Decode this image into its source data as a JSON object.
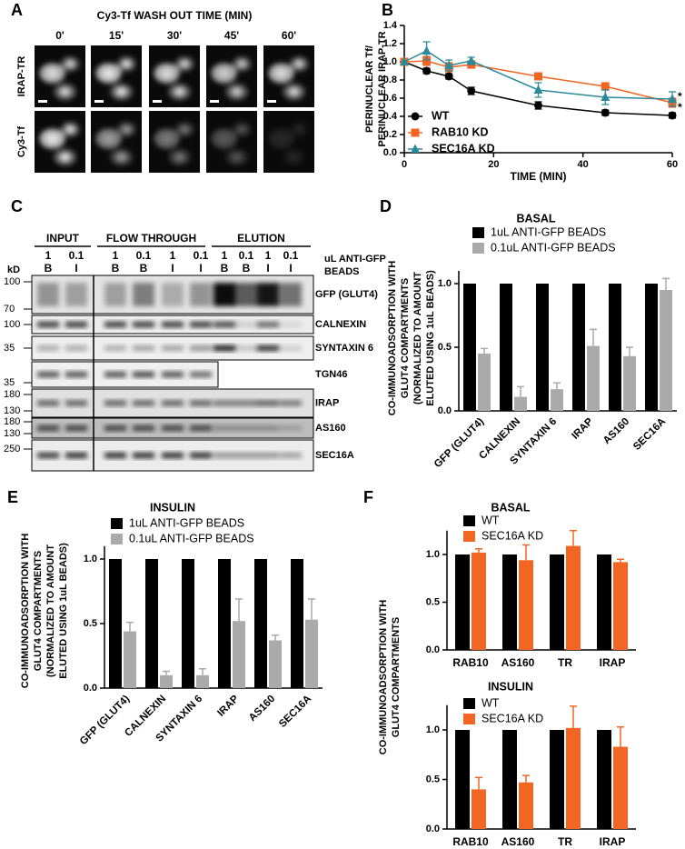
{
  "panel_labels": [
    "A",
    "B",
    "C",
    "D",
    "E",
    "F"
  ],
  "panel_a": {
    "title": "Cy3-Tf WASH OUT TIME (MIN)",
    "times": [
      "0'",
      "15'",
      "30'",
      "45'",
      "60'"
    ],
    "rows": [
      "IRAP-TR",
      "Cy3-Tf"
    ]
  },
  "panel_c": {
    "groups": [
      "INPUT",
      "FLOW THROUGH",
      "ELUTION"
    ],
    "lanes": [
      [
        "1",
        "B"
      ],
      [
        "0.1",
        "I"
      ],
      [
        "1",
        "B"
      ],
      [
        "0.1",
        "B"
      ],
      [
        "1",
        "I"
      ],
      [
        "0.1",
        "I"
      ],
      [
        "1",
        "B"
      ],
      [
        "0.1",
        "B"
      ],
      [
        "1",
        "I"
      ],
      [
        "0.1",
        "I"
      ]
    ],
    "lane_key": [
      "uL ANTI-GFP",
      "BEADS"
    ],
    "kd_label": "kD",
    "blots": [
      {
        "label": "GFP (GLUT4)",
        "markers": [
          "100",
          "70"
        ]
      },
      {
        "label": "CALNEXIN",
        "markers": [
          "100"
        ]
      },
      {
        "label": "SYNTAXIN 6",
        "markers": [
          "35"
        ]
      },
      {
        "label": "TGN46",
        "markers": [
          "35"
        ]
      },
      {
        "label": "IRAP",
        "markers": [
          "180",
          "130"
        ]
      },
      {
        "label": "AS160",
        "markers": [
          "180",
          "130"
        ]
      },
      {
        "label": "SEC16A",
        "markers": [
          "250"
        ]
      }
    ]
  },
  "chart_data": [
    {
      "type": "line",
      "x_label": "TIME (MIN)",
      "y_label": [
        "PERINUCLEAR Tf/",
        "PERINUCLEAR IRAP-TR"
      ],
      "x": [
        0,
        5,
        10,
        15,
        30,
        45,
        60
      ],
      "series": [
        {
          "name": "WT",
          "color": "#000000",
          "marker": "circle",
          "values": [
            1.0,
            0.9,
            0.84,
            0.68,
            0.52,
            0.44,
            0.41
          ],
          "errors": [
            null,
            0.03,
            0.03,
            0.04,
            0.04,
            0.03,
            0.03
          ]
        },
        {
          "name": "RAB10 KD",
          "color": "#f26522",
          "marker": "square",
          "values": [
            1.0,
            1.01,
            0.94,
            0.97,
            0.84,
            0.73,
            0.55
          ],
          "errors": [
            null,
            0.05,
            0.05,
            0.04,
            0.03,
            0.04,
            0.05
          ]
        },
        {
          "name": "SEC16A KD",
          "color": "#2a8a9a",
          "marker": "triangle",
          "values": [
            1.0,
            1.12,
            0.96,
            1.01,
            0.69,
            0.61,
            0.59
          ],
          "errors": [
            null,
            0.1,
            0.06,
            0.04,
            0.08,
            0.08,
            0.08
          ]
        }
      ],
      "annotations": [
        "*",
        "*"
      ],
      "xlim": [
        0,
        60
      ],
      "xticks": [
        0,
        20,
        40,
        60
      ],
      "ylim": [
        0,
        1.4
      ],
      "yticks": [
        {
          "value": 0,
          "label": "0.0"
        },
        0.2,
        0.4,
        0.6,
        0.8,
        {
          "value": 1,
          "label": "1.0"
        },
        1.2,
        1.4
      ]
    },
    {
      "type": "bar",
      "title": "BASAL",
      "y_label": [
        "CO-IMMUNOADSORPTION WITH",
        "GLUT4 COMPARTMENTS",
        "(NORMALIZED TO AMOUNT",
        "ELUTED USING 1uL BEADS)"
      ],
      "categories": [
        "GFP (GLUT4)",
        "CALNEXIN",
        "SYNTAXIN 6",
        "IRAP",
        "AS160",
        "SEC16A"
      ],
      "series": [
        {
          "name": "1uL ANTI-GFP BEADS",
          "color": "#000000",
          "values": [
            1,
            1,
            1,
            1,
            1,
            1
          ]
        },
        {
          "name": "0.1uL ANTI-GFP BEADS",
          "color": "#aaaaaa",
          "values": [
            0.45,
            0.11,
            0.17,
            0.51,
            0.43,
            0.95
          ],
          "errors": [
            0.04,
            0.08,
            0.05,
            0.13,
            0.07,
            0.09
          ]
        }
      ],
      "ylim": [
        0,
        1.1
      ],
      "yticks": [
        {
          "value": 0,
          "label": "0.0"
        },
        0.5,
        {
          "value": 1,
          "label": "1.0"
        }
      ]
    },
    {
      "type": "bar",
      "title": "INSULIN",
      "y_label": [
        "CO-IMMUNOADSORPTION WITH",
        "GLUT4 COMPARTMENTS",
        "(NORMALIZED TO AMOUNT",
        "ELUTED USING 1uL BEADS)"
      ],
      "categories": [
        "GFP (GLUT4)",
        "CALNEXIN",
        "SYNTAXIN 6",
        "IRAP",
        "AS160",
        "SEC16A"
      ],
      "series": [
        {
          "name": "1uL ANTI-GFP BEADS",
          "color": "#000000",
          "values": [
            1,
            1,
            1,
            1,
            1,
            1
          ]
        },
        {
          "name": "0.1uL ANTI-GFP BEADS",
          "color": "#aaaaaa",
          "values": [
            0.44,
            0.1,
            0.1,
            0.52,
            0.37,
            0.53
          ],
          "errors": [
            0.07,
            0.03,
            0.05,
            0.17,
            0.04,
            0.16
          ]
        }
      ],
      "ylim": [
        0,
        1.1
      ],
      "yticks": [
        {
          "value": 0,
          "label": "0.0"
        },
        0.5,
        {
          "value": 1,
          "label": "1.0"
        }
      ]
    },
    {
      "type": "bar",
      "title": "BASAL",
      "y_label": [
        "CO-IMMUNOADSORPTION WITH",
        "GLUT4 COMPARTMENTS"
      ],
      "categories": [
        "RAB10",
        "AS160",
        "TR",
        "IRAP"
      ],
      "series": [
        {
          "name": "WT",
          "color": "#000000",
          "values": [
            1,
            1,
            1,
            1
          ]
        },
        {
          "name": "SEC16A KD",
          "color": "#f26522",
          "values": [
            1.02,
            0.94,
            1.09,
            0.92
          ],
          "errors": [
            0.04,
            0.16,
            0.16,
            0.03
          ]
        }
      ],
      "ylim": [
        0,
        1.25
      ],
      "yticks": [
        {
          "value": 0,
          "label": "0.0"
        },
        0.5,
        {
          "value": 1,
          "label": "1.0"
        }
      ]
    },
    {
      "type": "bar",
      "title": "INSULIN",
      "categories": [
        "RAB10",
        "AS160",
        "TR",
        "IRAP"
      ],
      "series": [
        {
          "name": "WT",
          "color": "#000000",
          "values": [
            1,
            1,
            1,
            1
          ]
        },
        {
          "name": "SEC16A KD",
          "color": "#f26522",
          "values": [
            0.4,
            0.47,
            1.02,
            0.83
          ],
          "errors": [
            0.12,
            0.07,
            0.22,
            0.2
          ]
        }
      ],
      "ylim": [
        0,
        1.25
      ],
      "yticks": [
        {
          "value": 0,
          "label": "0.0"
        },
        0.5,
        {
          "value": 1,
          "label": "1.0"
        }
      ]
    }
  ]
}
